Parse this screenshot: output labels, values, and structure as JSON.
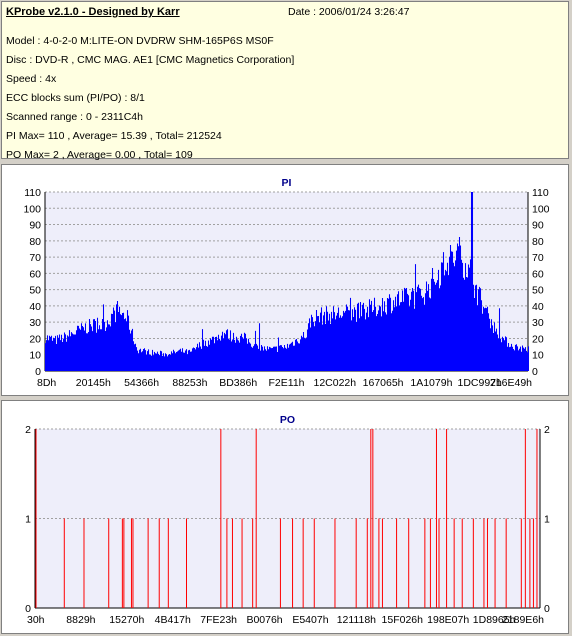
{
  "header": {
    "app_title": "KProbe v2.1.0 - Designed by Karr",
    "date": "Date : 2006/01/24 3:26:47",
    "lines": [
      "Model : 4-0-2-0 M:LITE-ON DVDRW SHM-165P6S MS0F",
      "Disc : DVD-R , CMC MAG. AE1 [CMC Magnetics Corporation]",
      "Speed : 4x",
      "ECC blocks sum (PI/PO) : 8/1",
      "Scanned range : 0 - 2311C4h",
      "PI Max= 110 , Average= 15.39 , Total= 212524",
      "PO Max= 2 , Average= 0.00 , Total= 109"
    ]
  },
  "colors": {
    "pi_bar": "#0000ff",
    "po_bar": "#ff0000",
    "plot_bg": "#eeeefa",
    "grid": "#a0a0a0"
  },
  "chart_data": [
    {
      "type": "bar",
      "title": "PI",
      "ylim": [
        0,
        110
      ],
      "yticks": [
        0,
        10,
        20,
        30,
        40,
        50,
        60,
        70,
        80,
        90,
        100,
        110
      ],
      "xticks": [
        "8Dh",
        "20145h",
        "54366h",
        "88253h",
        "BD386h",
        "F2E11h",
        "12C022h",
        "167065h",
        "1A1079h",
        "1DC997h",
        "216E49h"
      ],
      "grid": true,
      "profile": [
        [
          0,
          22
        ],
        [
          2,
          20
        ],
        [
          4,
          22
        ],
        [
          6,
          25
        ],
        [
          8,
          28
        ],
        [
          10,
          30
        ],
        [
          12,
          30
        ],
        [
          14,
          36
        ],
        [
          15,
          40
        ],
        [
          17,
          34
        ],
        [
          19,
          14
        ],
        [
          22,
          12
        ],
        [
          25,
          11
        ],
        [
          28,
          13
        ],
        [
          30,
          12
        ],
        [
          32,
          17
        ],
        [
          35,
          21
        ],
        [
          37,
          25
        ],
        [
          39,
          22
        ],
        [
          41,
          22
        ],
        [
          44,
          15
        ],
        [
          47,
          14
        ],
        [
          50,
          16
        ],
        [
          54,
          24
        ],
        [
          55,
          34
        ],
        [
          57,
          36
        ],
        [
          60,
          37
        ],
        [
          63,
          38
        ],
        [
          66,
          39
        ],
        [
          69,
          42
        ],
        [
          72,
          46
        ],
        [
          75,
          47
        ],
        [
          77,
          49
        ],
        [
          79,
          53
        ],
        [
          81,
          62
        ],
        [
          83,
          70
        ],
        [
          85,
          75
        ],
        [
          86,
          76
        ],
        [
          88,
          65
        ],
        [
          89,
          55
        ],
        [
          91,
          40
        ],
        [
          93,
          28
        ],
        [
          95,
          20
        ],
        [
          97,
          16
        ],
        [
          100,
          14
        ]
      ],
      "max_value": 110,
      "average": 15.39
    },
    {
      "type": "bar",
      "title": "PO",
      "ylim": [
        0,
        2
      ],
      "yticks": [
        0,
        1,
        2
      ],
      "xticks": [
        "30h",
        "8829h",
        "15270h",
        "4B417h",
        "7FE23h",
        "B0076h",
        "E5407h",
        "121118h",
        "15F026h",
        "198E07h",
        "1D8965h",
        "2189E6h"
      ],
      "grid": true,
      "events": [
        [
          0.2,
          2
        ],
        [
          5.8,
          1
        ],
        [
          9.7,
          1
        ],
        [
          14.6,
          1
        ],
        [
          17.3,
          1
        ],
        [
          17.6,
          1
        ],
        [
          19.1,
          1
        ],
        [
          19.4,
          1
        ],
        [
          22.4,
          1
        ],
        [
          24.6,
          1
        ],
        [
          26.4,
          1
        ],
        [
          30.0,
          1
        ],
        [
          36.8,
          2
        ],
        [
          38.0,
          1
        ],
        [
          39.1,
          1
        ],
        [
          41.0,
          1
        ],
        [
          43.1,
          1
        ],
        [
          43.8,
          2
        ],
        [
          48.6,
          1
        ],
        [
          51.0,
          1
        ],
        [
          53.1,
          1
        ],
        [
          55.3,
          1
        ],
        [
          59.4,
          1
        ],
        [
          63.6,
          1
        ],
        [
          65.8,
          1
        ],
        [
          66.5,
          2
        ],
        [
          66.9,
          2
        ],
        [
          68.1,
          1
        ],
        [
          68.8,
          1
        ],
        [
          71.6,
          1
        ],
        [
          74.0,
          1
        ],
        [
          77.2,
          1
        ],
        [
          78.3,
          1
        ],
        [
          79.5,
          2
        ],
        [
          80.0,
          1
        ],
        [
          81.5,
          2
        ],
        [
          83.0,
          1
        ],
        [
          84.6,
          1
        ],
        [
          86.8,
          1
        ],
        [
          88.9,
          1
        ],
        [
          89.6,
          1
        ],
        [
          91.1,
          1
        ],
        [
          93.3,
          1
        ],
        [
          96.3,
          1
        ],
        [
          97.1,
          2
        ],
        [
          98.0,
          1
        ],
        [
          98.7,
          1
        ],
        [
          99.4,
          2
        ]
      ],
      "max_value": 2,
      "total": 109
    }
  ]
}
